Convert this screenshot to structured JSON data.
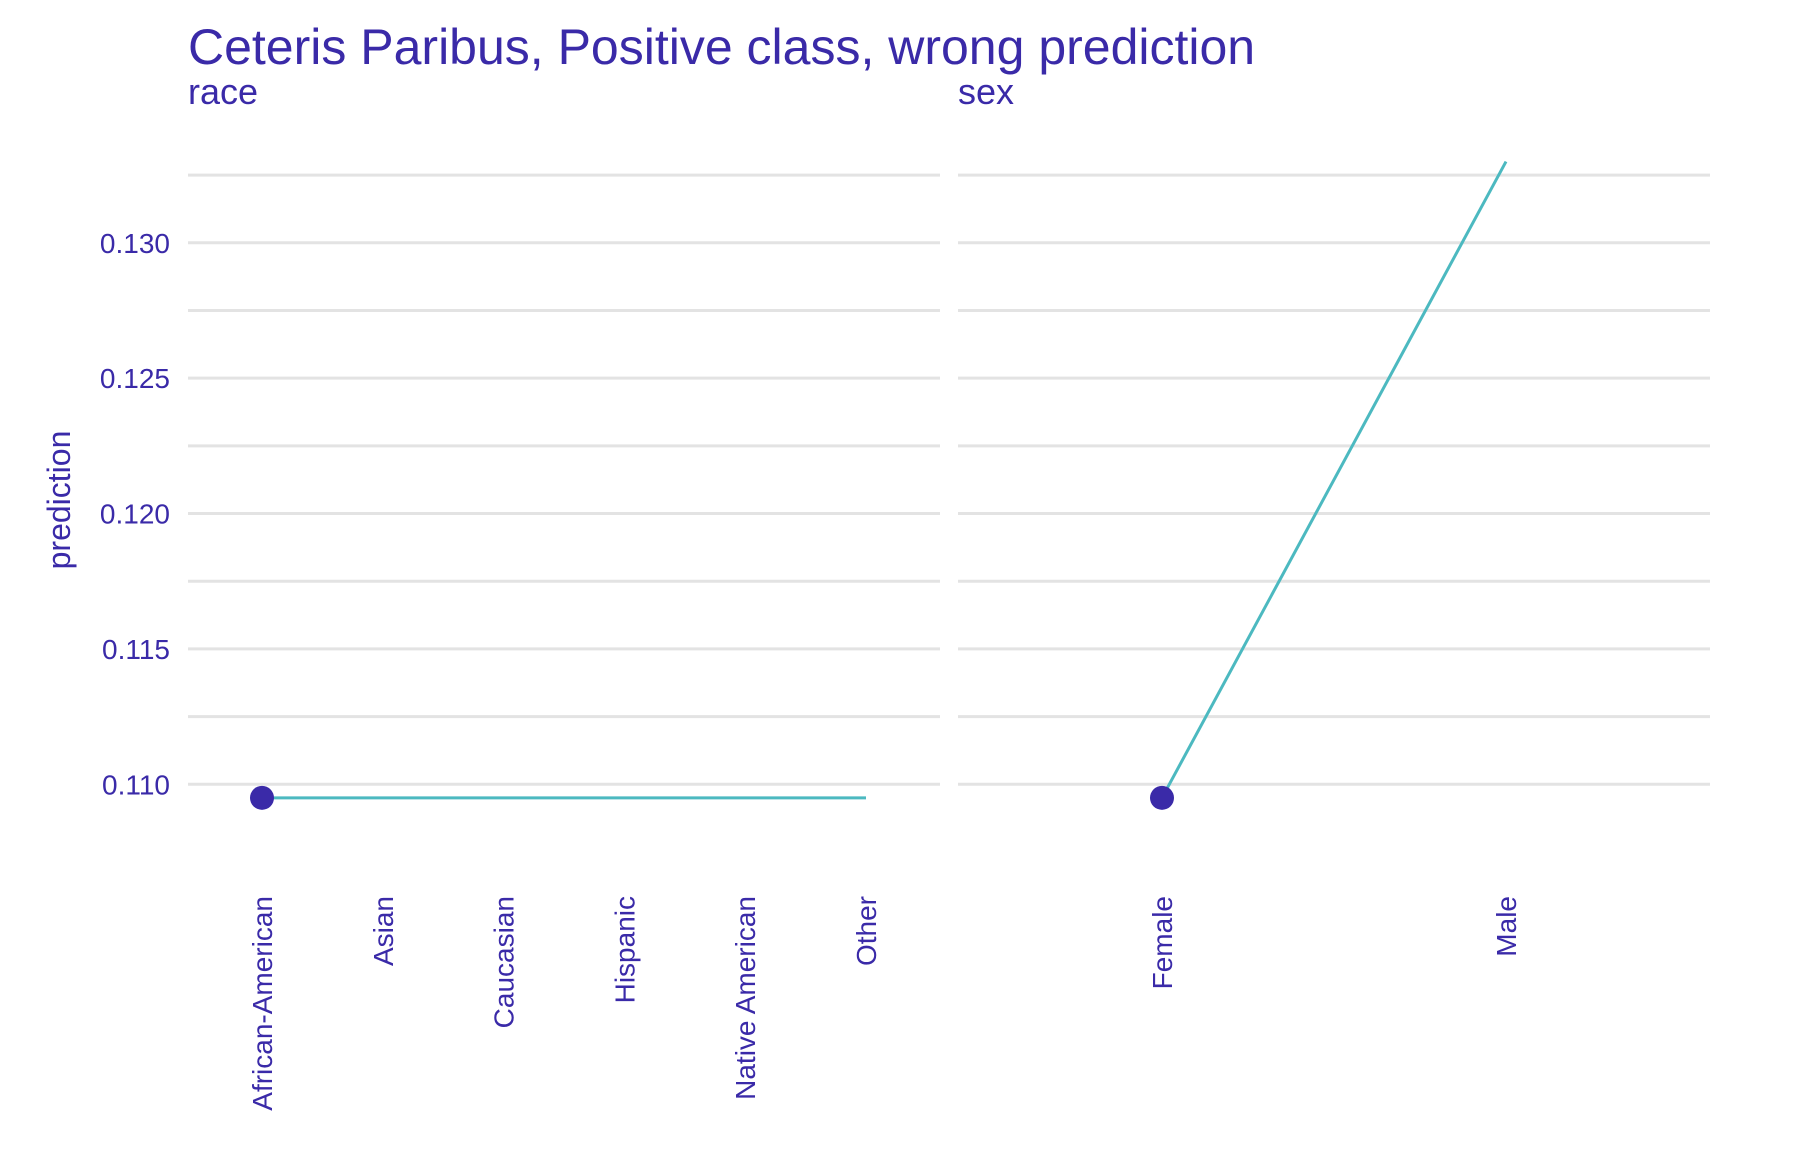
{
  "colors": {
    "text": "#3a2aa8",
    "grid": "#e3e3e3",
    "line": "#4cb9c0",
    "point": "#3a2aa8",
    "background": "#ffffff"
  },
  "chart_data": {
    "type": "line",
    "title": "Ceteris Paribus, Positive class, wrong prediction",
    "ylabel": "prediction",
    "ylim": [
      0.1075,
      0.1335
    ],
    "yticks": [
      0.11,
      0.115,
      0.12,
      0.125,
      0.13
    ],
    "ytick_labels": [
      "0.110",
      "0.115",
      "0.120",
      "0.125",
      "0.130"
    ],
    "grid": true,
    "panels": [
      {
        "facet": "race",
        "categories": [
          "African-American",
          "Asian",
          "Caucasian",
          "Hispanic",
          "Native American",
          "Other"
        ],
        "series": [
          {
            "values": [
              0.1095,
              0.1095,
              0.1095,
              0.1095,
              0.1095,
              0.1095
            ]
          }
        ],
        "observation": {
          "category": "African-American",
          "value": 0.1095
        }
      },
      {
        "facet": "sex",
        "categories": [
          "Female",
          "Male"
        ],
        "series": [
          {
            "values": [
              0.1095,
              0.133
            ]
          }
        ],
        "observation": {
          "category": "Female",
          "value": 0.1095
        }
      }
    ]
  }
}
